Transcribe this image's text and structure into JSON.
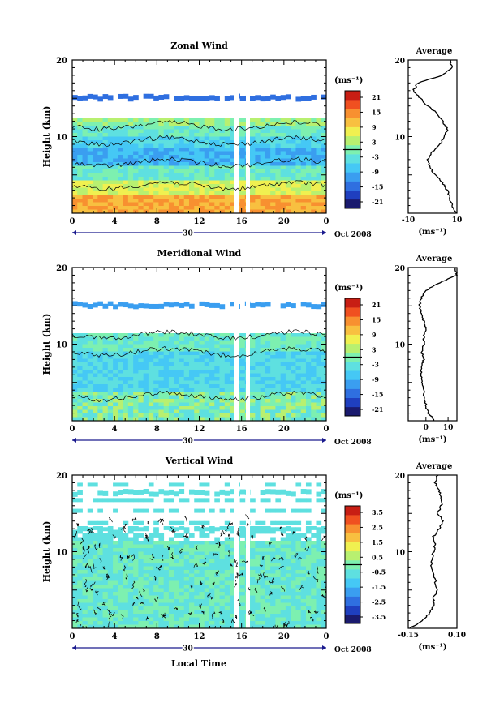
{
  "figure": {
    "xlabel": "Local Time",
    "date_label": "Oct 2008",
    "xticks": [
      "0",
      "4",
      "8",
      "12",
      "16",
      "20",
      "0"
    ],
    "day_label": "30",
    "ylabel": "Height (km)",
    "yticks": [
      "10",
      "20"
    ],
    "unit_label": "(ms⁻¹)",
    "avg_unit_label": "(ms⁻¹)",
    "colors": [
      "#1a1a6e",
      "#1f3fbf",
      "#2f6fe0",
      "#3a9ef0",
      "#45c8f5",
      "#5ee0e0",
      "#7df0b0",
      "#b8f070",
      "#f0f050",
      "#f8c040",
      "#f89030",
      "#f05020",
      "#c81e14"
    ]
  },
  "chart_data": [
    {
      "type": "heatmap",
      "title": "Zonal Wind",
      "colorbar_ticks": [
        "21",
        "15",
        "9",
        "3",
        "-3",
        "-9",
        "-15",
        "-21"
      ],
      "x_range": [
        0,
        24
      ],
      "y_range": [
        0,
        20
      ],
      "average": {
        "title": "Average",
        "xticks": [
          "-10",
          "10"
        ],
        "xlim": [
          -10,
          10
        ],
        "y": [
          0,
          1,
          2,
          3,
          4,
          5,
          6,
          7,
          8,
          9,
          10,
          11,
          12,
          13,
          14,
          15,
          16,
          17,
          18,
          19,
          20
        ],
        "x": [
          9.5,
          8,
          7,
          6,
          4,
          1,
          -1,
          -2,
          0,
          3,
          5,
          6,
          4,
          2,
          -2,
          -5,
          -8,
          -6,
          4,
          8,
          7
        ]
      }
    },
    {
      "type": "heatmap",
      "title": "Meridional Wind",
      "colorbar_ticks": [
        "21",
        "15",
        "9",
        "3",
        "-3",
        "-9",
        "-15",
        "-21"
      ],
      "x_range": [
        0,
        24
      ],
      "y_range": [
        0,
        20
      ],
      "average": {
        "title": "Average",
        "xticks": [
          "0",
          "10"
        ],
        "xlim": [
          -8,
          14
        ],
        "y": [
          0,
          1,
          2,
          3,
          4,
          5,
          6,
          7,
          8,
          9,
          10,
          11,
          12,
          13,
          14,
          15,
          16,
          17,
          18,
          19,
          20
        ],
        "x": [
          4,
          1,
          0,
          -1,
          -1,
          -2,
          -2,
          -2,
          -1,
          -2,
          -1,
          -1,
          0,
          -1,
          -2,
          -3,
          -2,
          0,
          6,
          14,
          13
        ]
      }
    },
    {
      "type": "heatmap",
      "title": "Vertical Wind",
      "colorbar_ticks": [
        "3.5",
        "2.5",
        "1.5",
        "0.5",
        "-0.5",
        "-1.5",
        "-2.5",
        "-3.5"
      ],
      "x_range": [
        0,
        24
      ],
      "y_range": [
        0,
        20
      ],
      "average": {
        "title": "Average",
        "xticks": [
          "-0.15",
          "0.10"
        ],
        "xlim": [
          -0.15,
          0.1
        ],
        "y": [
          0,
          1,
          2,
          3,
          4,
          5,
          6,
          7,
          8,
          9,
          10,
          11,
          12,
          13,
          14,
          15,
          16,
          17,
          18,
          19,
          20
        ],
        "x": [
          -0.14,
          -0.08,
          -0.04,
          -0.02,
          -0.02,
          0.0,
          -0.01,
          -0.02,
          -0.03,
          -0.03,
          -0.02,
          -0.01,
          -0.02,
          0.01,
          0.03,
          0.0,
          0.02,
          0.02,
          0.01,
          -0.01,
          0.0
        ]
      }
    }
  ]
}
